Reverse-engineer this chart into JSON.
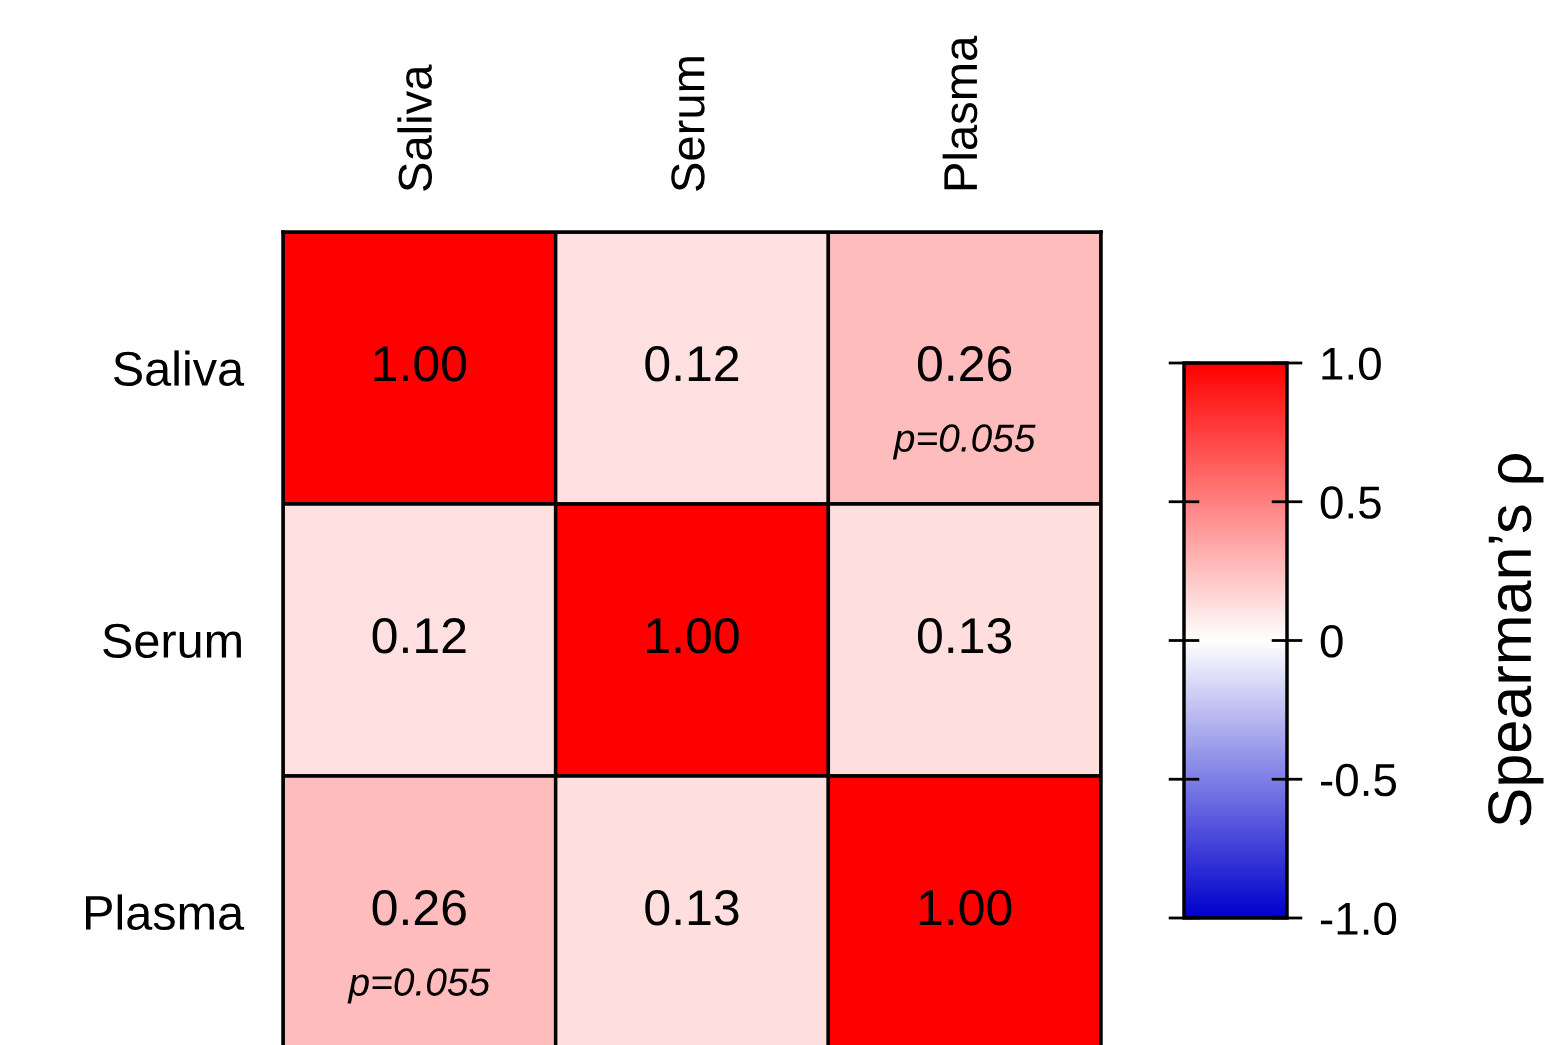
{
  "chart_data": {
    "type": "heatmap",
    "categories": [
      "Saliva",
      "Serum",
      "Plasma"
    ],
    "y_categories": [
      "Saliva",
      "Serum",
      "Plasma"
    ],
    "cells": [
      [
        1.0,
        0.12,
        0.26
      ],
      [
        0.12,
        1.0,
        0.13
      ],
      [
        0.26,
        0.13,
        1.0
      ]
    ],
    "cell_labels": [
      [
        "1.00",
        "0.12",
        "0.26\np=0.055"
      ],
      [
        "0.12",
        "1.00",
        "0.13"
      ],
      [
        "0.26\np=0.055",
        "0.13",
        "1.00"
      ]
    ],
    "colors": [
      "#0000cc",
      "#ffffff",
      "#ff0000"
    ],
    "clim": [
      -1.0,
      1.0
    ],
    "cticks": [
      {
        "value": 1.0,
        "label": "1.0"
      },
      {
        "value": 0.5,
        "label": "0.5"
      },
      0,
      {
        "value": -0.5,
        "label": "-0.5"
      },
      {
        "value": -1.0,
        "label": "-1.0"
      }
    ],
    "clabel": "Spearman’s ρ"
  }
}
